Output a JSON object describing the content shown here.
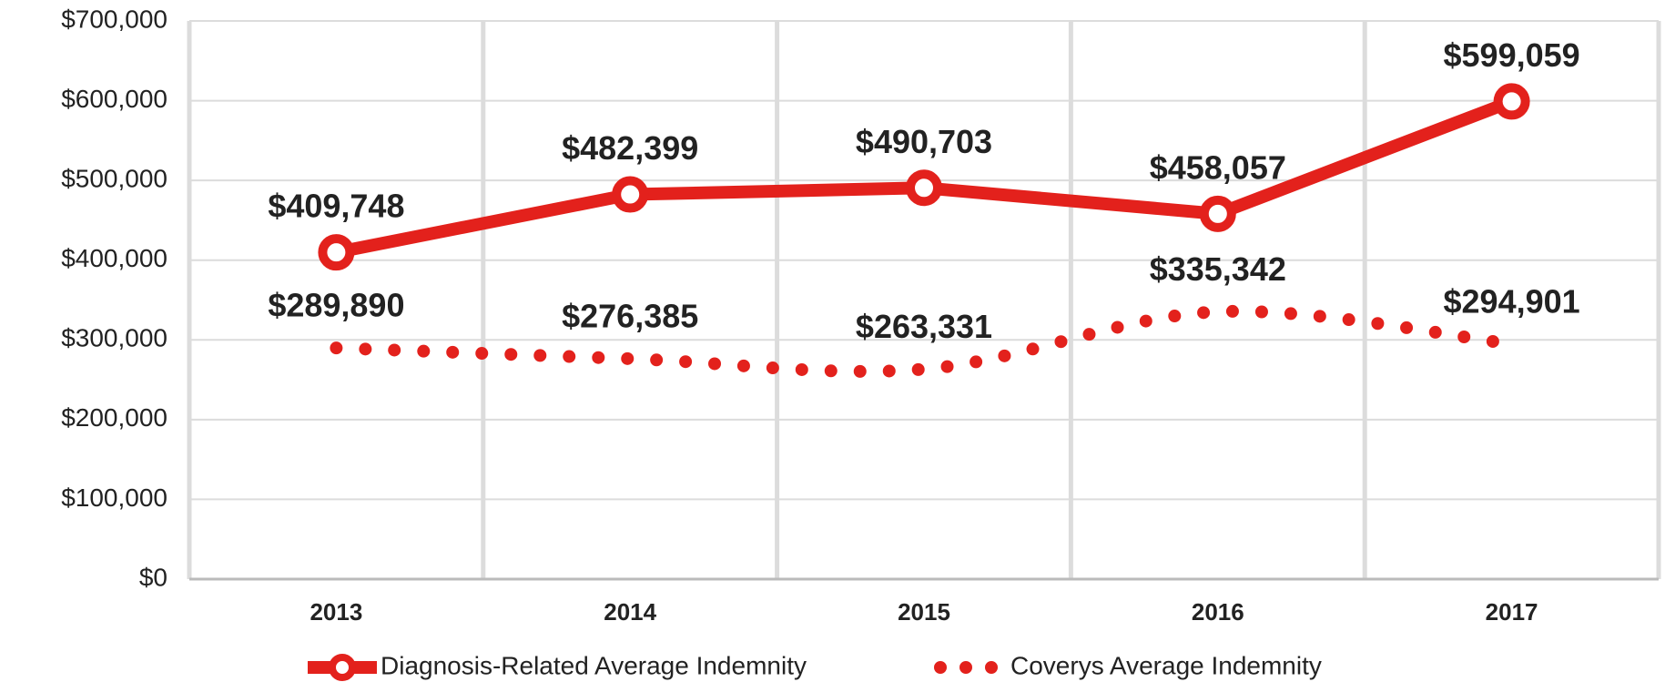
{
  "chart_data": {
    "type": "line",
    "categories": [
      "2013",
      "2014",
      "2015",
      "2016",
      "2017"
    ],
    "series": [
      {
        "name": "Diagnosis-Related Average Indemnity",
        "color": "#e3211c",
        "style": "solid",
        "values": [
          409748,
          482399,
          490703,
          458057,
          599059
        ],
        "value_labels": [
          "$409,748",
          "$482,399",
          "$490,703",
          "$458,057",
          "$599,059"
        ]
      },
      {
        "name": "Coverys Average Indemnity",
        "color": "#e3211c",
        "style": "dotted",
        "values": [
          289890,
          276385,
          263331,
          335342,
          294901
        ],
        "value_labels": [
          "$289,890",
          "$276,385",
          "$263,331",
          "$335,342",
          "$294,901"
        ]
      }
    ],
    "ylim": [
      0,
      700000
    ],
    "yticks": [
      {
        "value": 0,
        "label": "$0"
      },
      {
        "value": 100000,
        "label": "$100,000"
      },
      {
        "value": 200000,
        "label": "$200,000"
      },
      {
        "value": 300000,
        "label": "$300,000"
      },
      {
        "value": 400000,
        "label": "$400,000"
      },
      {
        "value": 500000,
        "label": "$500,000"
      },
      {
        "value": 600000,
        "label": "$600,000"
      },
      {
        "value": 700000,
        "label": "$700,000"
      }
    ],
    "grid": true,
    "legend": "bottom"
  }
}
